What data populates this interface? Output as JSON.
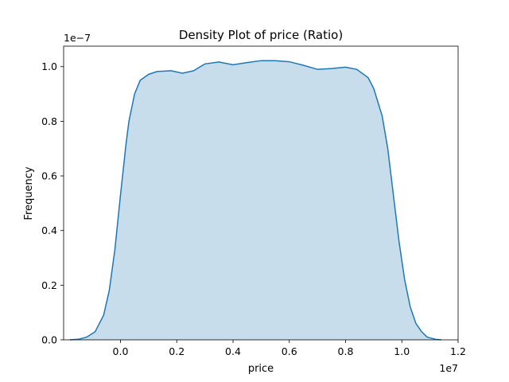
{
  "chart_data": {
    "type": "area",
    "title": "Density Plot of price (Ratio)",
    "xlabel": "price",
    "ylabel": "Frequency",
    "x_multiplier": "1e7",
    "y_multiplier": "1e−7",
    "xlim": [
      -1.85,
      1.2
    ],
    "ylim": [
      0,
      1.075
    ],
    "x_ticks": [
      0.0,
      0.2,
      0.4,
      0.6,
      0.8,
      1.0,
      1.2
    ],
    "x_tick_labels": [
      "0.0",
      "0.2",
      "0.4",
      "0.6",
      "0.8",
      "1.0",
      "1.2"
    ],
    "y_ticks": [
      0.0,
      0.2,
      0.4,
      0.6,
      0.8,
      1.0
    ],
    "y_tick_labels": [
      "0.0",
      "0.2",
      "0.4",
      "0.6",
      "0.8",
      "1.0"
    ],
    "grid": false,
    "colors": {
      "line": "#1f77b4",
      "fill": "#1f77b4",
      "fill_opacity": 0.25
    },
    "series": [
      {
        "x": [
          -0.18,
          -0.15,
          -0.12,
          -0.09,
          -0.06,
          -0.04,
          -0.02,
          0.0,
          0.02,
          0.03,
          0.05,
          0.07,
          0.1,
          0.13,
          0.18,
          0.22,
          0.26,
          0.3,
          0.35,
          0.4,
          0.45,
          0.5,
          0.55,
          0.6,
          0.65,
          0.7,
          0.75,
          0.8,
          0.84,
          0.88,
          0.9,
          0.93,
          0.95,
          0.97,
          0.99,
          1.01,
          1.03,
          1.05,
          1.07,
          1.09,
          1.12,
          1.14
        ],
        "y": [
          0.0,
          0.002,
          0.01,
          0.03,
          0.09,
          0.18,
          0.33,
          0.53,
          0.72,
          0.8,
          0.9,
          0.95,
          0.972,
          0.982,
          0.985,
          0.976,
          0.985,
          1.01,
          1.017,
          1.007,
          1.015,
          1.022,
          1.022,
          1.018,
          1.005,
          0.99,
          0.993,
          0.998,
          0.99,
          0.96,
          0.92,
          0.82,
          0.7,
          0.53,
          0.36,
          0.22,
          0.12,
          0.06,
          0.03,
          0.01,
          0.002,
          0.0
        ]
      }
    ]
  }
}
